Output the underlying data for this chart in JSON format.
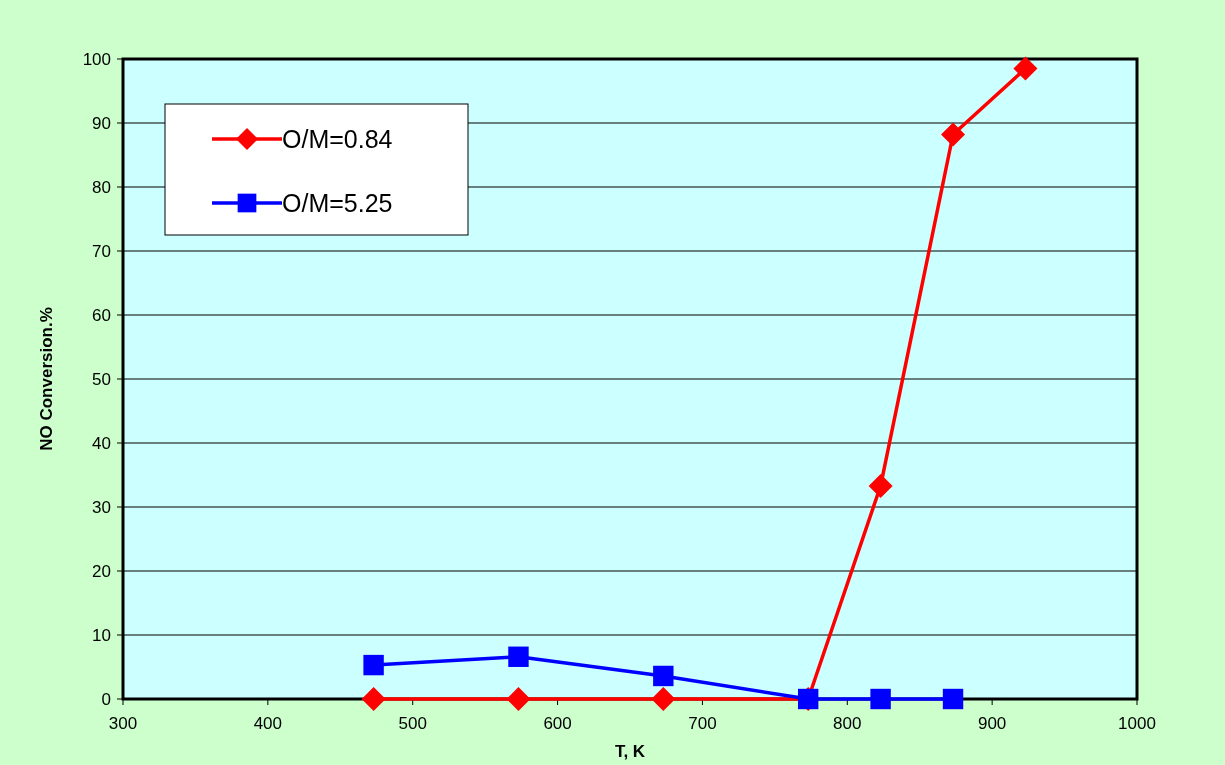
{
  "chart_data": {
    "type": "line",
    "xlabel": "T, K",
    "ylabel": "NO Conversion.%",
    "xlim": [
      300,
      1000
    ],
    "xticks": [
      300,
      400,
      500,
      600,
      700,
      800,
      900,
      1000
    ],
    "ylim": [
      0,
      100
    ],
    "yticks": [
      0,
      10,
      20,
      30,
      40,
      50,
      60,
      70,
      80,
      90,
      100
    ],
    "grid": "y",
    "legend": "top left",
    "line_style": "solid",
    "series": [
      {
        "name": "O/M=0.84",
        "color": "#ff0000",
        "marker": "diamond",
        "x": [
          473,
          573,
          673,
          773,
          823,
          873,
          923
        ],
        "values": [
          0,
          0,
          0,
          0,
          33.3,
          88.2,
          98.5
        ]
      },
      {
        "name": "O/M=5.25",
        "color": "#0000ff",
        "marker": "square",
        "x": [
          473,
          573,
          673,
          773,
          823,
          873
        ],
        "values": [
          5.3,
          6.6,
          3.6,
          0,
          0,
          0
        ]
      }
    ]
  }
}
